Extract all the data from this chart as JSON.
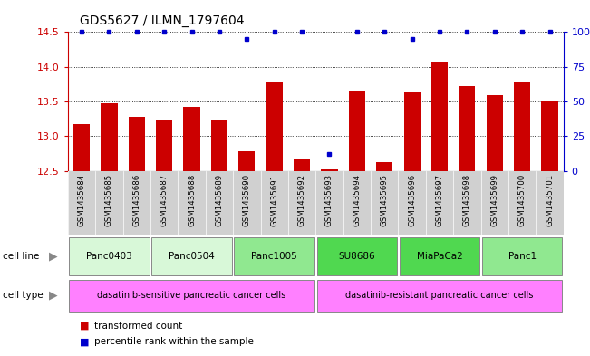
{
  "title": "GDS5627 / ILMN_1797604",
  "samples": [
    "GSM1435684",
    "GSM1435685",
    "GSM1435686",
    "GSM1435687",
    "GSM1435688",
    "GSM1435689",
    "GSM1435690",
    "GSM1435691",
    "GSM1435692",
    "GSM1435693",
    "GSM1435694",
    "GSM1435695",
    "GSM1435696",
    "GSM1435697",
    "GSM1435698",
    "GSM1435699",
    "GSM1435700",
    "GSM1435701"
  ],
  "bar_values": [
    13.18,
    13.47,
    13.28,
    13.22,
    13.42,
    13.22,
    12.78,
    13.79,
    12.67,
    12.52,
    13.66,
    12.62,
    13.63,
    14.07,
    13.72,
    13.59,
    13.78,
    13.5
  ],
  "percentile_values": [
    100,
    100,
    100,
    100,
    100,
    100,
    95,
    100,
    100,
    12,
    100,
    100,
    95,
    100,
    100,
    100,
    100,
    100
  ],
  "cell_lines": [
    {
      "label": "Panc0403",
      "start": 0,
      "end": 2,
      "color": "#d8f8d8"
    },
    {
      "label": "Panc0504",
      "start": 3,
      "end": 5,
      "color": "#d8f8d8"
    },
    {
      "label": "Panc1005",
      "start": 6,
      "end": 8,
      "color": "#90e890"
    },
    {
      "label": "SU8686",
      "start": 9,
      "end": 11,
      "color": "#50d850"
    },
    {
      "label": "MiaPaCa2",
      "start": 12,
      "end": 14,
      "color": "#50d850"
    },
    {
      "label": "Panc1",
      "start": 15,
      "end": 17,
      "color": "#90e890"
    }
  ],
  "cell_type_sensitive": {
    "label": "dasatinib-sensitive pancreatic cancer cells",
    "start": 0,
    "end": 8
  },
  "cell_type_resistant": {
    "label": "dasatinib-resistant pancreatic cancer cells",
    "start": 9,
    "end": 17
  },
  "cell_type_color": "#ff80ff",
  "ylim_left": [
    12.5,
    14.5
  ],
  "ylim_right": [
    0,
    100
  ],
  "yticks_left": [
    12.5,
    13.0,
    13.5,
    14.0,
    14.5
  ],
  "yticks_right": [
    0,
    25,
    50,
    75,
    100
  ],
  "bar_color": "#cc0000",
  "percentile_color": "#0000cc",
  "bar_width": 0.6,
  "sample_label_bg": "#d0d0d0",
  "background_color": "#ffffff"
}
